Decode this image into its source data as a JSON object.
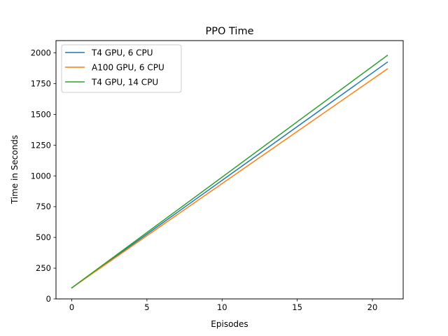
{
  "chart_data": {
    "type": "line",
    "title": "PPO Time",
    "xlabel": "Episodes",
    "ylabel": "Time in Seconds",
    "xlim": [
      -1.05,
      22.05
    ],
    "ylim": [
      0,
      2100
    ],
    "xticks": [
      0,
      5,
      10,
      15,
      20
    ],
    "yticks": [
      0,
      250,
      500,
      750,
      1000,
      1250,
      1500,
      1750,
      2000
    ],
    "grid": false,
    "legend_position": "top-left",
    "x": [
      0,
      21
    ],
    "series": [
      {
        "name": "T4 GPU, 6 CPU",
        "color": "#1f77b4",
        "values": [
          90,
          1925
        ]
      },
      {
        "name": "A100 GPU, 6 CPU",
        "color": "#ff7f0e",
        "values": [
          90,
          1870
        ]
      },
      {
        "name": "T4 GPU, 14 CPU",
        "color": "#2ca02c",
        "values": [
          90,
          1980
        ]
      }
    ]
  }
}
